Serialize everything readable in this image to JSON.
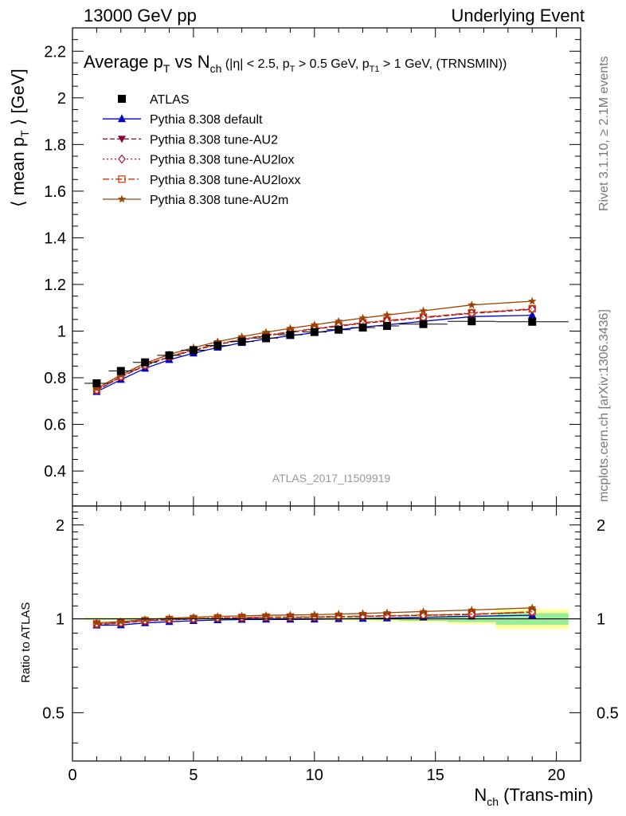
{
  "header": {
    "left": "13000 GeV pp",
    "right": "Underlying Event"
  },
  "side_labels": {
    "rivet": "Rivet 3.1.10, ≥ 2.1M events",
    "mcplots": "mcplots.cern.ch [arXiv:1306.3436]"
  },
  "watermark": "ATLAS_2017_I1509919",
  "chart_data": {
    "type": "line",
    "title": "Average p_T vs N_ch (|η| < 2.5, p_T > 0.5 GeV, p_T1 > 1 GeV, (TRNSMIN))",
    "ylabel": "⟨ mean p_T ⟩ [GeV]",
    "xlabel": "N_ch (Trans-min)",
    "xlim": [
      0,
      21
    ],
    "ylim": [
      0.25,
      2.3
    ],
    "ratio_ylabel": "Ratio to ATLAS",
    "ratio_ylim": [
      0.35,
      2.3
    ],
    "legend_position": "top-left",
    "x_ticks": [
      0,
      5,
      10,
      15,
      20
    ],
    "y_ticks": [
      0.4,
      0.6,
      0.8,
      1,
      1.2,
      1.4,
      1.6,
      1.8,
      2,
      2.2
    ],
    "ratio_y_ticks": [
      0.5,
      1,
      2
    ],
    "data": {
      "name": "ATLAS",
      "x": [
        1,
        2,
        3,
        4,
        5,
        6,
        7,
        8,
        9,
        10,
        11,
        12,
        13,
        14.5,
        16.5,
        19
      ],
      "y": [
        0.776,
        0.829,
        0.866,
        0.896,
        0.918,
        0.938,
        0.955,
        0.97,
        0.984,
        0.996,
        1.006,
        1.015,
        1.022,
        1.03,
        1.042,
        1.04
      ],
      "xerr": [
        0.5,
        0.5,
        0.5,
        0.5,
        0.5,
        0.5,
        0.5,
        0.5,
        0.5,
        0.5,
        0.5,
        0.5,
        0.5,
        1.0,
        1.0,
        1.5
      ],
      "band_inner": [
        0.005,
        0.005,
        0.005,
        0.005,
        0.005,
        0.005,
        0.005,
        0.005,
        0.006,
        0.006,
        0.007,
        0.008,
        0.01,
        0.015,
        0.025,
        0.045
      ],
      "band_outer": [
        0.008,
        0.008,
        0.008,
        0.008,
        0.008,
        0.008,
        0.008,
        0.009,
        0.01,
        0.011,
        0.013,
        0.015,
        0.018,
        0.025,
        0.04,
        0.075
      ]
    },
    "series": [
      {
        "name": "Pythia 8.308 default",
        "color": "#0000cc",
        "dash": "",
        "marker": "triangle-up",
        "y": [
          0.74,
          0.792,
          0.84,
          0.877,
          0.905,
          0.93,
          0.95,
          0.966,
          0.98,
          0.993,
          1.006,
          1.017,
          1.027,
          1.042,
          1.062,
          1.068
        ]
      },
      {
        "name": "Pythia 8.308 tune-AU2",
        "color": "#880033",
        "dash": "6,3",
        "marker": "triangle-down",
        "y": [
          0.745,
          0.803,
          0.852,
          0.889,
          0.917,
          0.942,
          0.962,
          0.98,
          0.994,
          1.008,
          1.021,
          1.033,
          1.043,
          1.057,
          1.076,
          1.093
        ]
      },
      {
        "name": "Pythia 8.308 tune-AU2lox",
        "color": "#aa1133",
        "dash": "2,3",
        "marker": "diamond-open",
        "y": [
          0.746,
          0.804,
          0.853,
          0.89,
          0.918,
          0.943,
          0.963,
          0.981,
          0.995,
          1.009,
          1.022,
          1.034,
          1.044,
          1.058,
          1.077,
          1.094
        ]
      },
      {
        "name": "Pythia 8.308 tune-AU2loxx",
        "color": "#cc3300",
        "dash": "8,3,2,3",
        "marker": "square-open",
        "y": [
          0.748,
          0.806,
          0.855,
          0.892,
          0.92,
          0.945,
          0.965,
          0.983,
          0.997,
          1.011,
          1.024,
          1.036,
          1.046,
          1.06,
          1.079,
          1.096
        ]
      },
      {
        "name": "Pythia 8.308 tune-AU2m",
        "color": "#994400",
        "dash": "",
        "marker": "star",
        "y": [
          0.754,
          0.812,
          0.862,
          0.9,
          0.929,
          0.955,
          0.976,
          0.995,
          1.012,
          1.027,
          1.042,
          1.056,
          1.069,
          1.087,
          1.112,
          1.128
        ]
      }
    ]
  }
}
